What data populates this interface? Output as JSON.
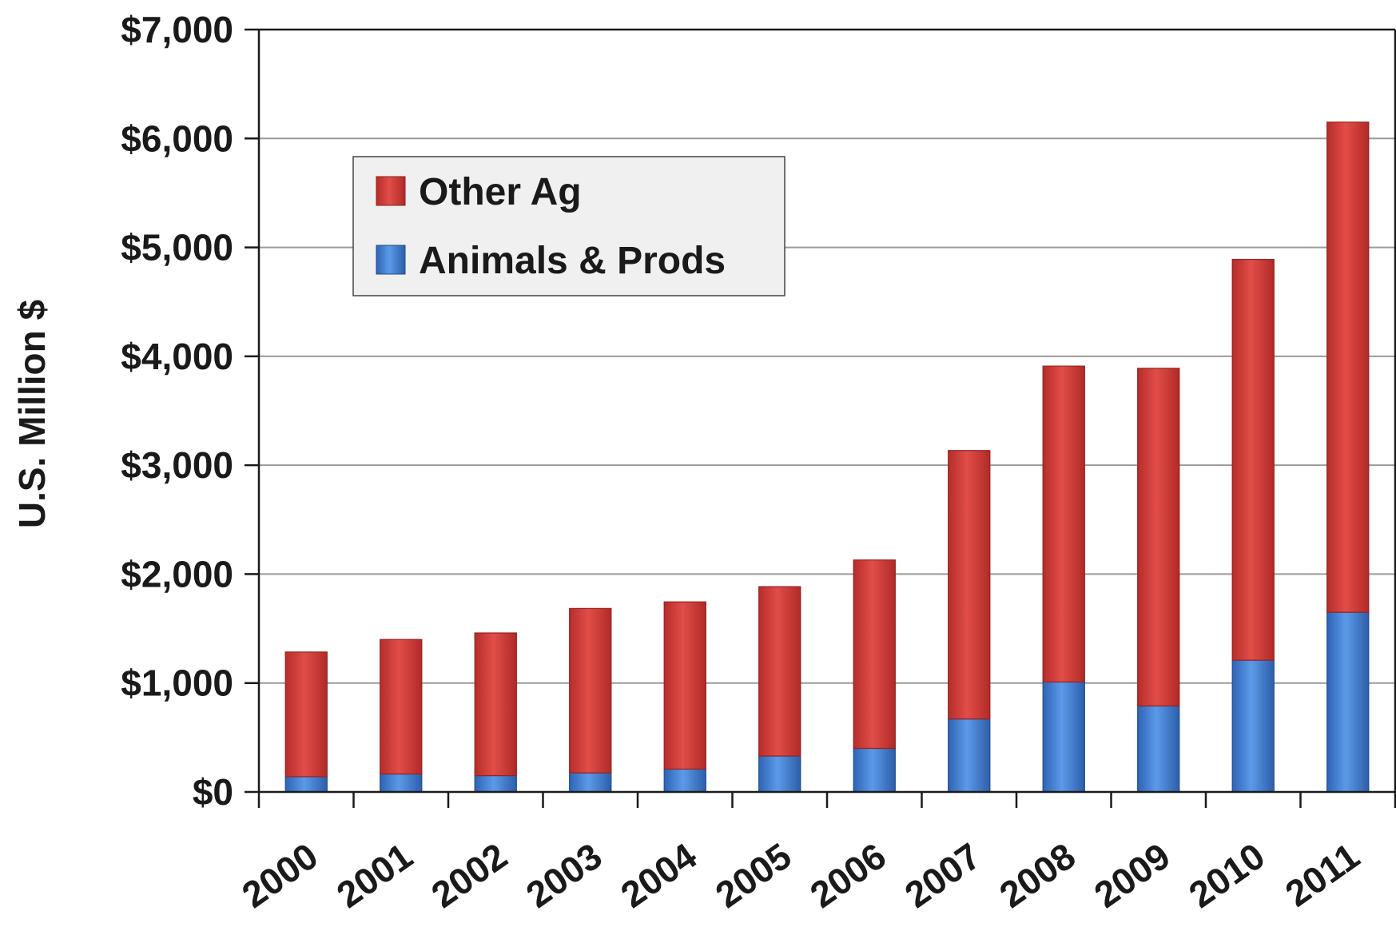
{
  "chart_data": {
    "type": "bar",
    "stacked": true,
    "title": "",
    "xlabel": "",
    "ylabel": "U.S. Million $",
    "categories": [
      "2000",
      "2001",
      "2002",
      "2003",
      "2004",
      "2005",
      "2006",
      "2007",
      "2008",
      "2009",
      "2010",
      "2011"
    ],
    "series": [
      {
        "name": "Animals & Prods",
        "color": "#3f7fd6",
        "values": [
          140,
          165,
          150,
          175,
          210,
          330,
          400,
          670,
          1010,
          790,
          1210,
          1650
        ]
      },
      {
        "name": "Other Ag",
        "color": "#d63f3b",
        "values": [
          1145,
          1235,
          1310,
          1510,
          1535,
          1555,
          1730,
          2465,
          2900,
          3100,
          3680,
          4500
        ]
      }
    ],
    "ylim": [
      0,
      7000
    ],
    "yticks": [
      0,
      1000,
      2000,
      3000,
      4000,
      5000,
      6000,
      7000
    ],
    "ytick_labels": [
      "$0",
      "$1,000",
      "$2,000",
      "$3,000",
      "$4,000",
      "$5,000",
      "$6,000",
      "$7,000"
    ],
    "grid": true,
    "legend": {
      "placement": "top-left",
      "entries": [
        "Other Ag",
        "Animals & Prods"
      ]
    }
  }
}
